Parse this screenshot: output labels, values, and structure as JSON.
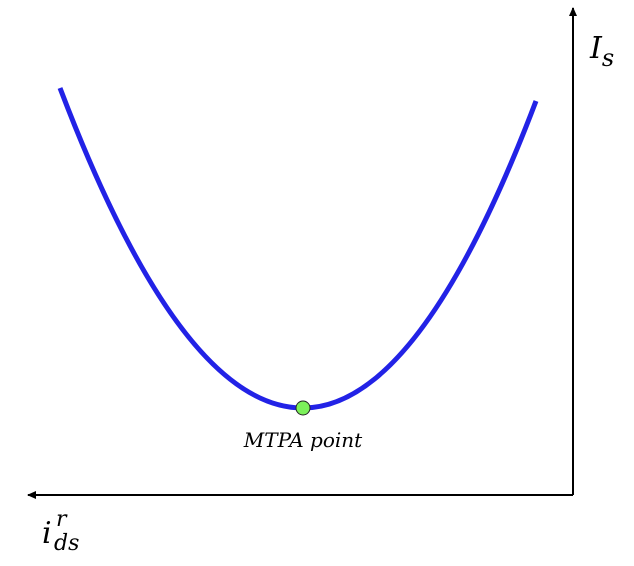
{
  "axes": {
    "y_label": {
      "main": "I",
      "sub": "s"
    },
    "x_label": {
      "main": "i",
      "sup": "r",
      "sub": "ds"
    }
  },
  "point": {
    "label": "MTPA point"
  }
}
